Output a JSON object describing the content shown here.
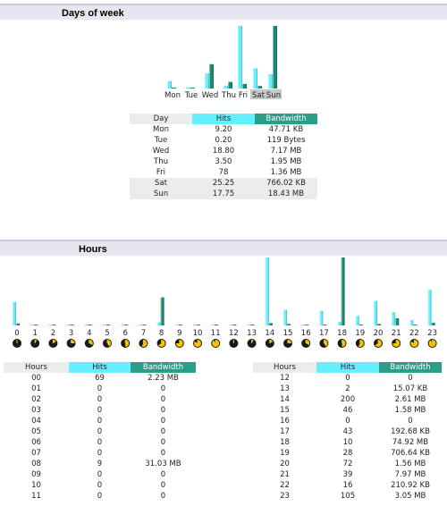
{
  "days_section": {
    "title": "Days of week",
    "headers": {
      "day": "Day",
      "hits": "Hits",
      "bandwidth": "Bandwidth"
    },
    "rows": [
      {
        "day": "Mon",
        "hits": "9.20",
        "bandwidth": "47.71 KB"
      },
      {
        "day": "Tue",
        "hits": "0.20",
        "bandwidth": "119 Bytes"
      },
      {
        "day": "Wed",
        "hits": "18.80",
        "bandwidth": "7.17 MB"
      },
      {
        "day": "Thu",
        "hits": "3.50",
        "bandwidth": "1.95 MB"
      },
      {
        "day": "Fri",
        "hits": "78",
        "bandwidth": "1.36 MB"
      },
      {
        "day": "Sat",
        "hits": "25.25",
        "bandwidth": "766.02 KB"
      },
      {
        "day": "Sun",
        "hits": "17.75",
        "bandwidth": "18.43 MB"
      }
    ]
  },
  "hours_section": {
    "title": "Hours",
    "headers": {
      "hours": "Hours",
      "hits": "Hits",
      "bandwidth": "Bandwidth"
    },
    "rows_left": [
      {
        "hour": "00",
        "hits": "69",
        "bandwidth": "2.23 MB"
      },
      {
        "hour": "01",
        "hits": "0",
        "bandwidth": "0"
      },
      {
        "hour": "02",
        "hits": "0",
        "bandwidth": "0"
      },
      {
        "hour": "03",
        "hits": "0",
        "bandwidth": "0"
      },
      {
        "hour": "04",
        "hits": "0",
        "bandwidth": "0"
      },
      {
        "hour": "05",
        "hits": "0",
        "bandwidth": "0"
      },
      {
        "hour": "06",
        "hits": "0",
        "bandwidth": "0"
      },
      {
        "hour": "07",
        "hits": "0",
        "bandwidth": "0"
      },
      {
        "hour": "08",
        "hits": "9",
        "bandwidth": "31.03 MB"
      },
      {
        "hour": "09",
        "hits": "0",
        "bandwidth": "0"
      },
      {
        "hour": "10",
        "hits": "0",
        "bandwidth": "0"
      },
      {
        "hour": "11",
        "hits": "0",
        "bandwidth": "0"
      }
    ],
    "rows_right": [
      {
        "hour": "12",
        "hits": "0",
        "bandwidth": "0"
      },
      {
        "hour": "13",
        "hits": "2",
        "bandwidth": "15.07 KB"
      },
      {
        "hour": "14",
        "hits": "200",
        "bandwidth": "2.61 MB"
      },
      {
        "hour": "15",
        "hits": "46",
        "bandwidth": "1.58 MB"
      },
      {
        "hour": "16",
        "hits": "0",
        "bandwidth": "0"
      },
      {
        "hour": "17",
        "hits": "43",
        "bandwidth": "192.68 KB"
      },
      {
        "hour": "18",
        "hits": "10",
        "bandwidth": "74.92 MB"
      },
      {
        "hour": "19",
        "hits": "28",
        "bandwidth": "706.64 KB"
      },
      {
        "hour": "20",
        "hits": "72",
        "bandwidth": "1.56 MB"
      },
      {
        "hour": "21",
        "hits": "39",
        "bandwidth": "7.97 MB"
      },
      {
        "hour": "22",
        "hits": "16",
        "bandwidth": "210.92 KB"
      },
      {
        "hour": "23",
        "hits": "105",
        "bandwidth": "3.05 MB"
      }
    ]
  },
  "colors": {
    "hits": "#66f0ff",
    "bandwidth": "#1a8c74",
    "header_bg": "#e6e6ee",
    "row_shade": "#ececec"
  },
  "chart_data": [
    {
      "type": "bar",
      "categories": [
        "Mon",
        "Tue",
        "Wed",
        "Thu",
        "Fri",
        "Sat",
        "Sun"
      ],
      "highlighted_categories": [
        "Sat",
        "Sun"
      ],
      "series": [
        {
          "name": "Hits",
          "values": [
            9.2,
            0.2,
            18.8,
            3.5,
            78,
            25.25,
            17.75
          ]
        },
        {
          "name": "Bandwidth",
          "values": [
            0.0466,
            0.0001,
            7.17,
            1.95,
            1.36,
            0.748,
            18.43
          ]
        }
      ]
    },
    {
      "type": "bar",
      "categories": [
        "0",
        "1",
        "2",
        "3",
        "4",
        "5",
        "6",
        "7",
        "8",
        "9",
        "10",
        "11",
        "12",
        "13",
        "14",
        "15",
        "16",
        "17",
        "18",
        "19",
        "20",
        "21",
        "22",
        "23"
      ],
      "series": [
        {
          "name": "Hits",
          "values": [
            69,
            0,
            0,
            0,
            0,
            0,
            0,
            0,
            9,
            0,
            0,
            0,
            0,
            2,
            200,
            46,
            0,
            43,
            10,
            28,
            72,
            39,
            16,
            105
          ]
        },
        {
          "name": "Bandwidth",
          "values": [
            2.23,
            0,
            0,
            0,
            0,
            0,
            0,
            0,
            31.03,
            0,
            0,
            0,
            0,
            0.0147,
            2.61,
            1.58,
            0,
            0.188,
            74.92,
            0.69,
            1.56,
            7.97,
            0.206,
            3.05
          ]
        }
      ]
    }
  ]
}
